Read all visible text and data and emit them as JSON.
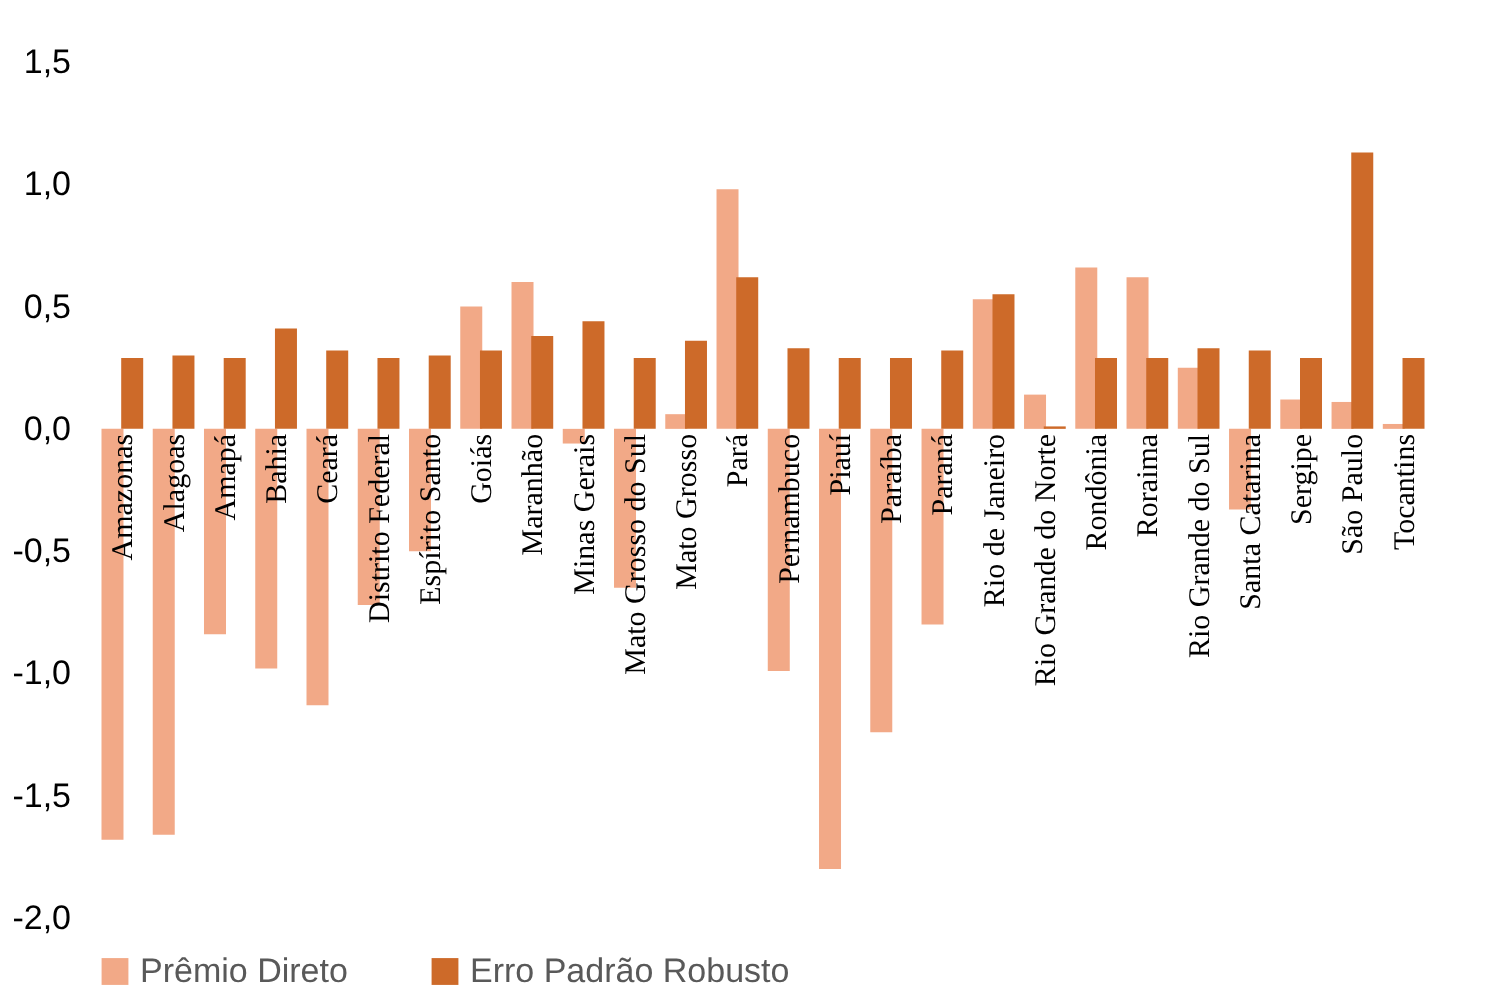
{
  "chart_data": {
    "type": "bar",
    "categories": [
      "Amazonas",
      "Alagoas",
      "Amapá",
      "Bahia",
      "Ceará",
      "Distrito Federal",
      "Espírito Santo",
      "Goiás",
      "Maranhão",
      "Minas Gerais",
      "Mato Grosso do Sul",
      "Mato Grosso",
      "Pará",
      "Pernambuco",
      "Piauí",
      "Paraíba",
      "Paraná",
      "Rio de Janeiro",
      "Rio Grande do Norte",
      "Rondônia",
      "Roraima",
      "Rio Grande do Sul",
      "Santa Catarina",
      "Sergipe",
      "São Paulo",
      "Tocantins"
    ],
    "series": [
      {
        "name": "Prêmio Direto",
        "color": "#f2a987",
        "values": [
          -1.68,
          -1.66,
          -0.84,
          -0.98,
          -1.13,
          -0.72,
          -0.5,
          0.5,
          0.6,
          -0.06,
          -0.65,
          0.06,
          0.98,
          -0.99,
          -1.8,
          -1.24,
          -0.8,
          0.53,
          0.14,
          0.66,
          0.62,
          0.25,
          -0.33,
          0.12,
          0.11,
          0.02
        ]
      },
      {
        "name": "Erro Padrão Robusto",
        "color": "#cd6a29",
        "values": [
          0.29,
          0.3,
          0.29,
          0.41,
          0.32,
          0.29,
          0.3,
          0.32,
          0.38,
          0.44,
          0.29,
          0.36,
          0.62,
          0.33,
          0.29,
          0.29,
          0.32,
          0.55,
          0.01,
          0.29,
          0.29,
          0.33,
          0.32,
          0.29,
          1.13,
          0.29
        ]
      }
    ],
    "ylim": [
      -2.0,
      1.5
    ],
    "yticks": [
      {
        "value": -2.0,
        "label": "-2,0"
      },
      {
        "value": -1.5,
        "label": "-1,5"
      },
      {
        "value": -1.0,
        "label": "-1,0"
      },
      {
        "value": -0.5,
        "label": "-0,5"
      },
      {
        "value": 0.0,
        "label": "0,0"
      },
      {
        "value": 0.5,
        "label": "0,5"
      },
      {
        "value": 1.0,
        "label": "1,0"
      },
      {
        "value": 1.5,
        "label": "1,5"
      }
    ],
    "grid": false,
    "legend": "bottom"
  }
}
